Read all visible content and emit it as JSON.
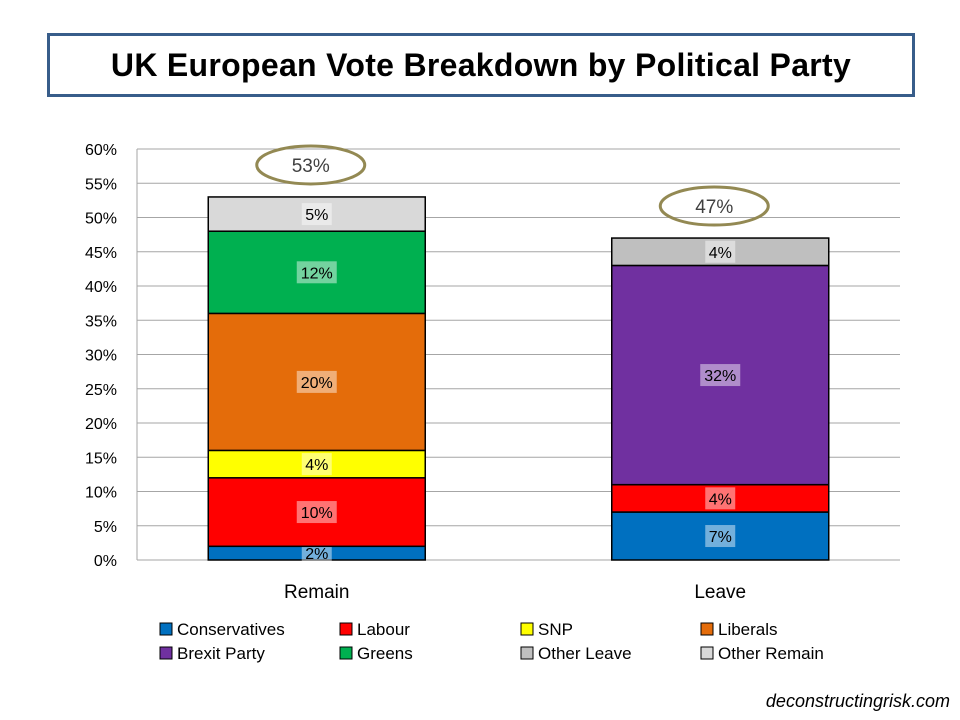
{
  "chart_data": {
    "type": "bar",
    "stacked": true,
    "title": "UK European Vote Breakdown by Political Party",
    "categories": [
      "Remain",
      "Leave"
    ],
    "yaxis": {
      "min": 0,
      "max": 60,
      "step": 5,
      "tick_labels": [
        "0%",
        "5%",
        "10%",
        "15%",
        "20%",
        "25%",
        "30%",
        "35%",
        "40%",
        "45%",
        "50%",
        "55%",
        "60%"
      ]
    },
    "grid": true,
    "legend_position": "bottom",
    "series": [
      {
        "name": "Conservatives",
        "color": "#0070c0",
        "values": [
          2,
          7
        ],
        "labels": [
          "2%",
          "7%"
        ]
      },
      {
        "name": "Labour",
        "color": "#ff0000",
        "values": [
          10,
          4
        ],
        "labels": [
          "10%",
          "4%"
        ]
      },
      {
        "name": "SNP",
        "color": "#ffff00",
        "values": [
          4,
          0
        ],
        "labels": [
          "4%",
          ""
        ]
      },
      {
        "name": "Liberals",
        "color": "#e46c0a",
        "values": [
          20,
          0
        ],
        "labels": [
          "20%",
          ""
        ]
      },
      {
        "name": "Brexit Party",
        "color": "#7030a0",
        "values": [
          0,
          32
        ],
        "labels": [
          "",
          "32%"
        ]
      },
      {
        "name": "Greens",
        "color": "#00b050",
        "values": [
          12,
          0
        ],
        "labels": [
          "12%",
          ""
        ]
      },
      {
        "name": "Other Leave",
        "color": "#bfbfbf",
        "values": [
          0,
          4
        ],
        "labels": [
          "",
          "4%"
        ]
      },
      {
        "name": "Other Remain",
        "color": "#d9d9d9",
        "values": [
          5,
          0
        ],
        "labels": [
          "5%",
          ""
        ]
      }
    ],
    "totals": [
      {
        "value": 53,
        "label": "53%"
      },
      {
        "value": 47,
        "label": "47%"
      }
    ],
    "total_ring_color": "#938953"
  },
  "watermark": "deconstructingrisk.com"
}
